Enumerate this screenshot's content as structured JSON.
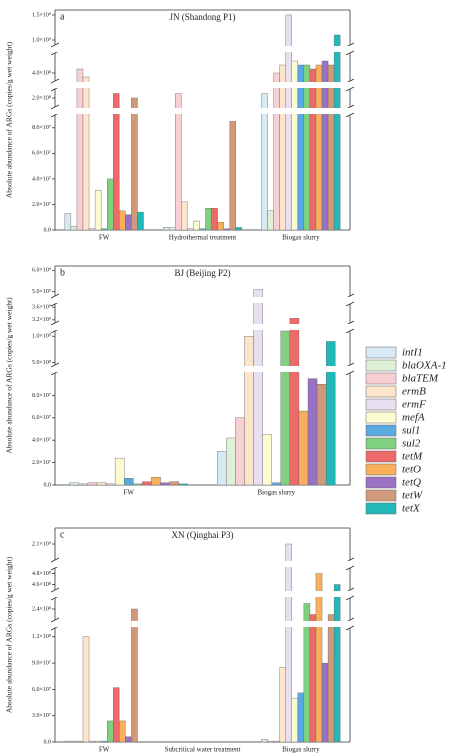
{
  "chart_data": [
    {
      "type": "bar",
      "panel_label": "a",
      "title": "JN (Shandong P1)",
      "y_label": "Absolute abundance of ARGs (copies/g wet weight)",
      "categories": [
        "FW",
        "Hydrothermal treatment",
        "Biogas slurry"
      ],
      "y_segments": [
        {
          "ylim": [
            0,
            90000000.0
          ],
          "yticks": [
            {
              "value": 0,
              "label": "0.0"
            },
            {
              "value": 20000000.0,
              "label": "2.0×10⁷"
            },
            {
              "value": 40000000.0,
              "label": "4.0×10⁷"
            },
            {
              "value": 60000000.0,
              "label": "6.0×10⁷"
            },
            {
              "value": 80000000.0,
              "label": "8.0×10⁷"
            }
          ]
        },
        {
          "ylim": [
            180000000.0,
            220000000.0
          ],
          "yticks": [
            {
              "value": 200000000.0,
              "label": "2.0×10⁸"
            }
          ]
        },
        {
          "ylim": [
            380000000.0,
            450000000.0
          ],
          "yticks": [
            {
              "value": 400000000.0,
              "label": "4.0×10⁸"
            }
          ]
        },
        {
          "ylim": [
            900000000.0,
            1600000000.0
          ],
          "yticks": [
            {
              "value": 1000000000.0,
              "label": "1.0×10⁹"
            },
            {
              "value": 1500000000.0,
              "label": "1.5×10⁹"
            }
          ]
        }
      ],
      "series": [
        {
          "name": "intI1",
          "color": "#d6e9f5",
          "values": [
            13000000.0,
            2000000.0,
            210000000.0
          ]
        },
        {
          "name": "blaOXA-1",
          "color": "#dff0d8",
          "values": [
            3000000.0,
            2000000.0,
            15000000.0
          ]
        },
        {
          "name": "blaTEM",
          "color": "#f8d0d4",
          "values": [
            410000000.0,
            210000000.0,
            400000000.0
          ]
        },
        {
          "name": "ermB",
          "color": "#fde5cc",
          "values": [
            390000000.0,
            22000000.0,
            420000000.0
          ]
        },
        {
          "name": "ermF",
          "color": "#e8dff0",
          "values": [
            1000000.0,
            1000000.0,
            1500000000.0
          ]
        },
        {
          "name": "mefA",
          "color": "#fdfbd0",
          "values": [
            31000000.0,
            7000000.0,
            430000000.0
          ]
        },
        {
          "name": "sul1",
          "color": "#5aa9e0",
          "values": [
            1000000.0,
            1000000.0,
            420000000.0
          ]
        },
        {
          "name": "sul2",
          "color": "#7fd07f",
          "values": [
            40000000.0,
            17000000.0,
            420000000.0
          ]
        },
        {
          "name": "tetM",
          "color": "#ee6a6a",
          "values": [
            210000000.0,
            17000000.0,
            410000000.0
          ]
        },
        {
          "name": "tetO",
          "color": "#f8b05a",
          "values": [
            15000000.0,
            6000000.0,
            420000000.0
          ]
        },
        {
          "name": "tetQ",
          "color": "#9a72c4",
          "values": [
            12000000.0,
            1000000.0,
            430000000.0
          ]
        },
        {
          "name": "tetW",
          "color": "#d09a7a",
          "values": [
            200000000.0,
            85000000.0,
            420000000.0
          ]
        },
        {
          "name": "tetX",
          "color": "#20b8b8",
          "values": [
            14000000.0,
            2000000.0,
            1100000000.0
          ]
        }
      ]
    },
    {
      "type": "bar",
      "panel_label": "b",
      "title": "BJ (Beijing P2)",
      "y_label": "Absolute abundance of ARGs (copies/g wet weight)",
      "categories": [
        "FW",
        "Biogas slurry"
      ],
      "y_segments": [
        {
          "ylim": [
            0,
            100000000.0
          ],
          "yticks": [
            {
              "value": 0,
              "label": "0.0"
            },
            {
              "value": 20000000.0,
              "label": "2.0×10⁷"
            },
            {
              "value": 40000000.0,
              "label": "4.0×10⁷"
            },
            {
              "value": 60000000.0,
              "label": "6.0×10⁷"
            },
            {
              "value": 80000000.0,
              "label": "8.0×10⁷"
            }
          ]
        },
        {
          "ylim": [
            450000000.0,
            1100000000.0
          ],
          "yticks": [
            {
              "value": 500000000.0,
              "label": "5.0×10⁸"
            },
            {
              "value": 1000000000.0,
              "label": "1.0×10⁹"
            }
          ]
        },
        {
          "ylim": [
            3100000000.0,
            3700000000.0
          ],
          "yticks": [
            {
              "value": 3200000000.0,
              "label": "3.2×10⁹"
            },
            {
              "value": 3600000000.0,
              "label": "3.6×10⁹"
            }
          ]
        },
        {
          "ylim": [
            4800000000.0,
            6200000000.0
          ],
          "yticks": [
            {
              "value": 5000000000.0,
              "label": "5.0×10⁹"
            },
            {
              "value": 6000000000.0,
              "label": "6.0×10⁹"
            }
          ]
        }
      ],
      "series": [
        {
          "values": [
            2000000.0,
            30000000.0
          ]
        },
        {
          "values": [
            1000000.0,
            42000000.0
          ]
        },
        {
          "values": [
            2000000.0,
            60000000.0
          ]
        },
        {
          "values": [
            2000000.0,
            1000000000.0
          ]
        },
        {
          "values": [
            1000000.0,
            5100000000.0
          ]
        },
        {
          "values": [
            24000000.0,
            45000000.0
          ]
        },
        {
          "values": [
            6000000.0,
            2000000.0
          ]
        },
        {
          "values": [
            1000000.0,
            1100000000.0
          ]
        },
        {
          "values": [
            3000000.0,
            3250000000.0
          ]
        },
        {
          "values": [
            7000000.0,
            66000000.0
          ]
        },
        {
          "values": [
            2000000.0,
            95000000.0
          ]
        },
        {
          "values": [
            3000000.0,
            90000000.0
          ]
        },
        {
          "values": [
            1000000.0,
            900000000.0
          ]
        }
      ]
    },
    {
      "type": "bar",
      "panel_label": "c",
      "title": "XN (Qinghai P3)",
      "y_label": "Absolute abundance of ARGs (copies/g wet weight)",
      "categories": [
        "FW",
        "Subcritical water treatment",
        "Biogas slurry"
      ],
      "y_segments": [
        {
          "ylim": [
            0,
            130000000.0
          ],
          "yticks": [
            {
              "value": 0,
              "label": "0.0"
            },
            {
              "value": 30000000.0,
              "label": "3.0×10⁷"
            },
            {
              "value": 60000000.0,
              "label": "6.0×10⁷"
            },
            {
              "value": 90000000.0,
              "label": "9.0×10⁷"
            },
            {
              "value": 120000000.0,
              "label": "1.2×10⁸"
            }
          ]
        },
        {
          "ylim": [
            230000000.0,
            250000000.0
          ],
          "yticks": [
            {
              "value": 240000000.0,
              "label": "2.4×10⁸"
            }
          ]
        },
        {
          "ylim": [
            450000000.0,
            490000000.0
          ],
          "yticks": [
            {
              "value": 460000000.0,
              "label": "4.6×10⁸"
            },
            {
              "value": 480000000.0,
              "label": "4.8×10⁸"
            }
          ]
        },
        {
          "ylim": [
            2000000000.0,
            2200000000.0
          ],
          "yticks": [
            {
              "value": 2100000000.0,
              "label": "2.1×10⁹"
            }
          ]
        }
      ],
      "series": [
        {
          "values": [
            1000000.0,
            0,
            3000000.0
          ]
        },
        {
          "values": [
            1000000.0,
            0,
            1000000.0
          ]
        },
        {
          "values": [
            1000000.0,
            0,
            1000000.0
          ]
        },
        {
          "values": [
            120000000.0,
            0,
            85000000.0
          ]
        },
        {
          "values": [
            1000000.0,
            0,
            2100000000.0
          ]
        },
        {
          "values": [
            1000000.0,
            0,
            50000000.0
          ]
        },
        {
          "values": [
            1000000.0,
            0,
            56000000.0
          ]
        },
        {
          "values": [
            24000000.0,
            0,
            245000000.0
          ]
        },
        {
          "values": [
            62000000.0,
            0,
            235000000.0
          ]
        },
        {
          "values": [
            24000000.0,
            0,
            480000000.0
          ]
        },
        {
          "values": [
            6000000.0,
            0,
            90000000.0
          ]
        },
        {
          "values": [
            240000000.0,
            0,
            235000000.0
          ]
        },
        {
          "values": [
            0,
            0,
            460000000.0
          ]
        }
      ]
    }
  ]
}
